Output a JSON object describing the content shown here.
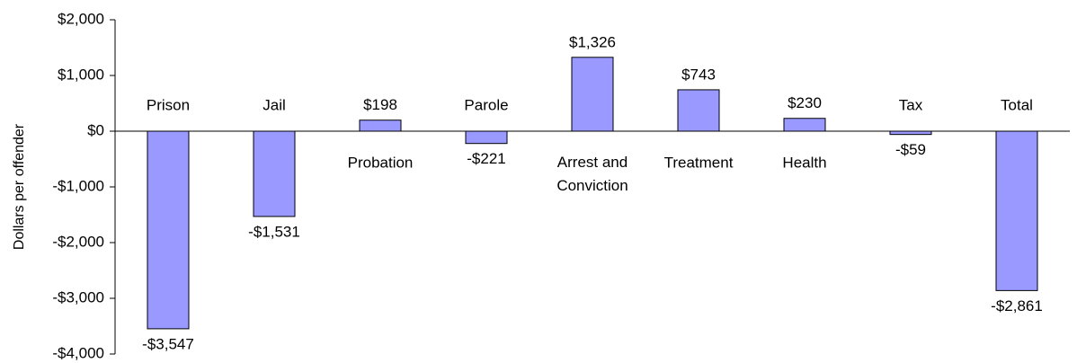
{
  "chart_data": {
    "type": "bar",
    "y_label": "Dollars per offender",
    "categories": [
      "Prison",
      "Jail",
      "Probation",
      "Parole",
      "Arrest and Conviction",
      "Treatment",
      "Health",
      "Tax",
      "Total"
    ],
    "values": [
      -3547,
      -1531,
      198,
      -221,
      1326,
      743,
      230,
      -59,
      -2861
    ],
    "value_labels": [
      "-$3,547",
      "-$1,531",
      "$198",
      "-$221",
      "$1,326",
      "$743",
      "$230",
      "-$59",
      "-$2,861"
    ],
    "color": "#9999ff",
    "ylim": [
      -4000,
      2000
    ],
    "yticks": [
      {
        "value": -4000,
        "label": "-$4,000"
      },
      {
        "value": -3000,
        "label": "-$3,000"
      },
      {
        "value": -2000,
        "label": "-$2,000"
      },
      {
        "value": -1000,
        "label": "-$1,000"
      },
      {
        "value": 0,
        "label": "$0"
      },
      {
        "value": 1000,
        "label": "$1,000"
      },
      {
        "value": 2000,
        "label": "$2,000"
      }
    ],
    "grid": false
  }
}
